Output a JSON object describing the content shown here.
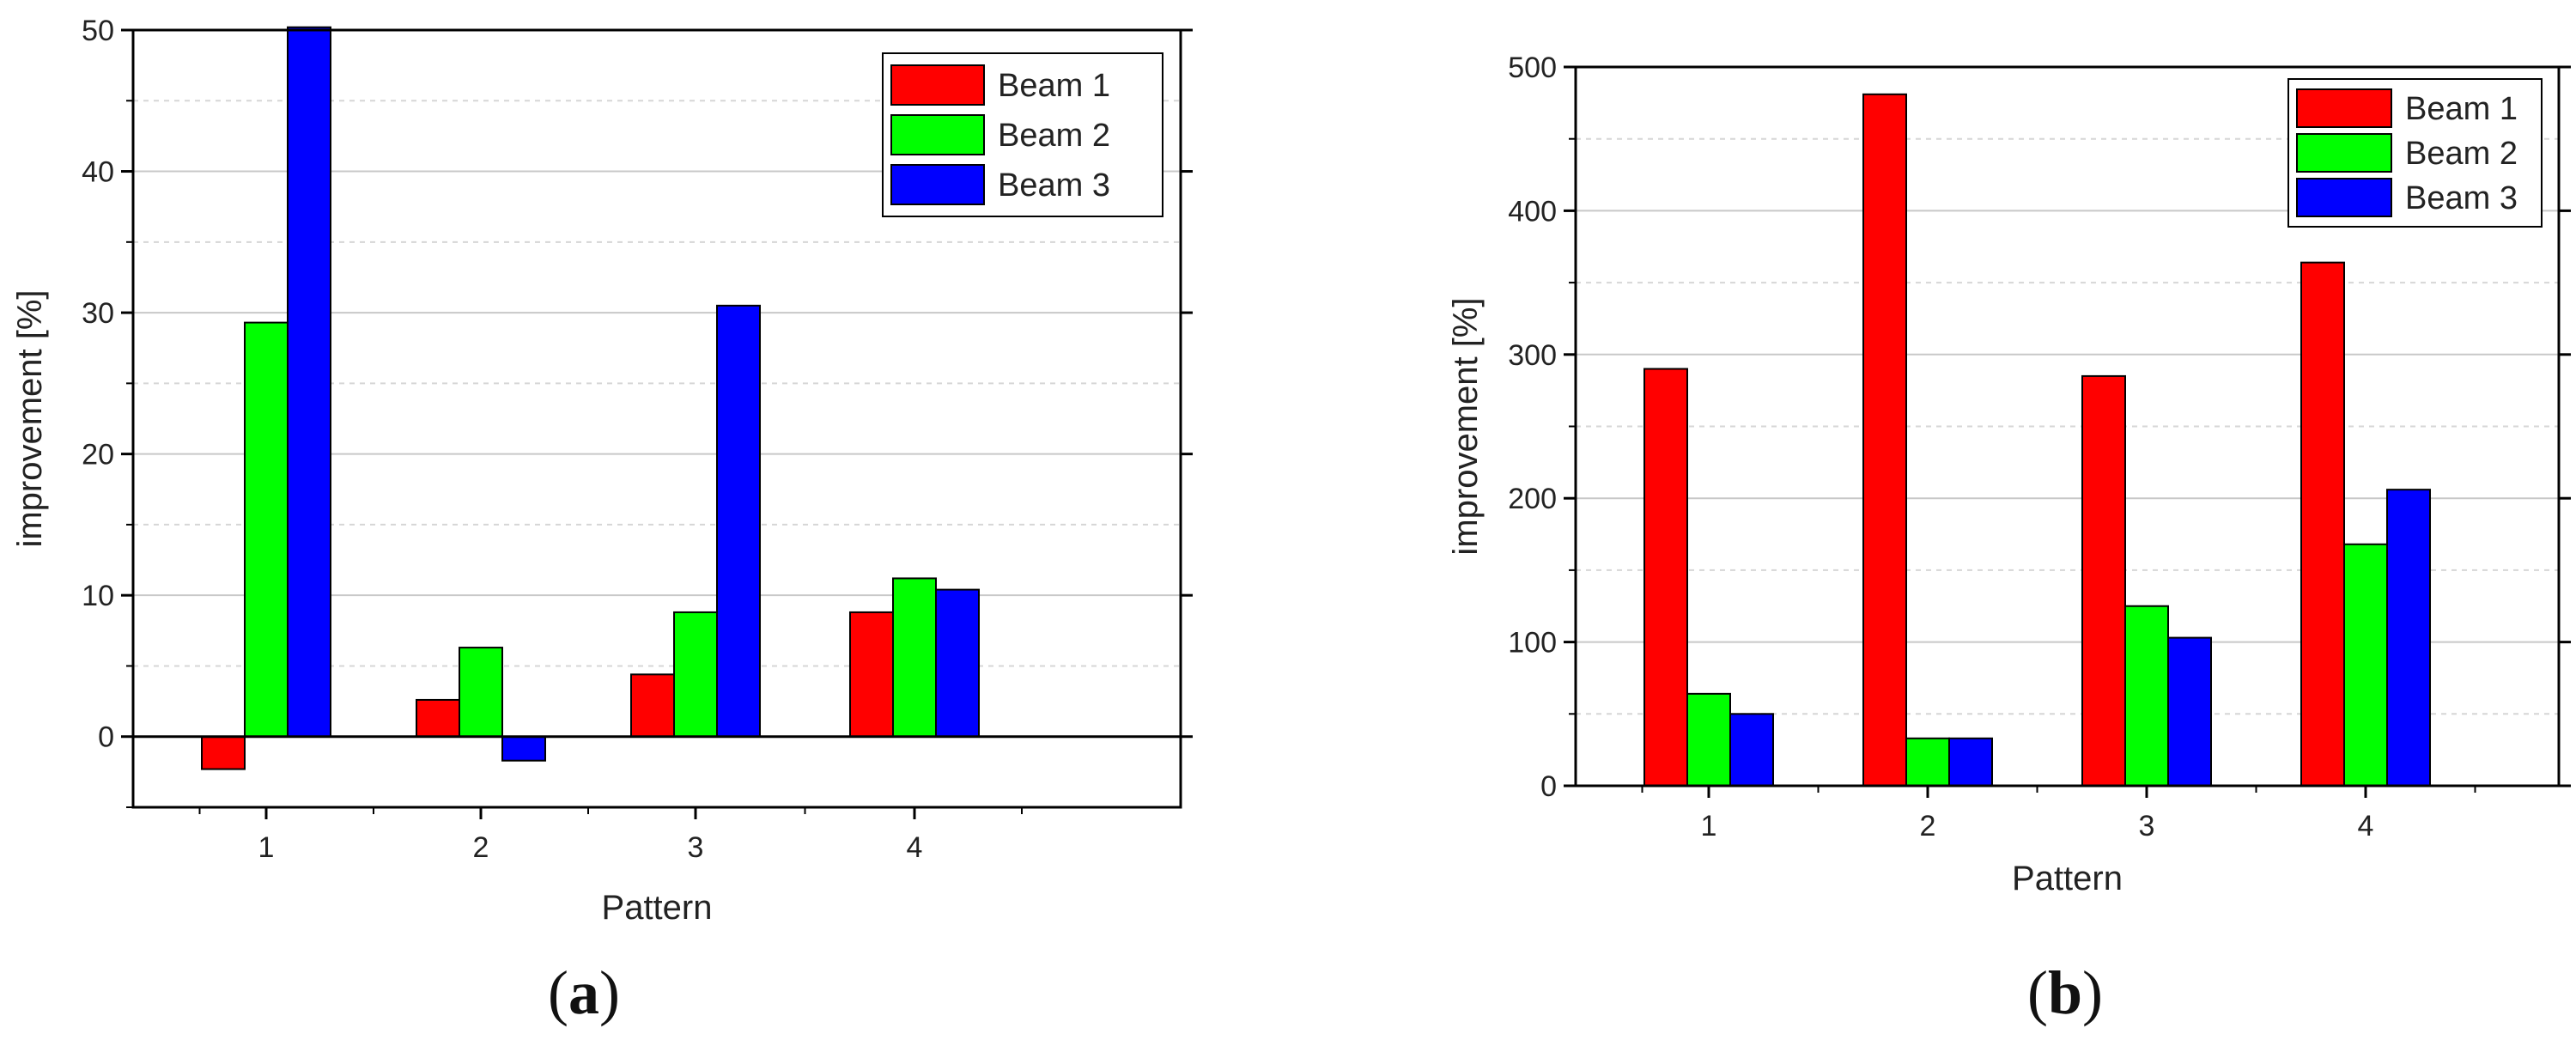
{
  "chart_data": [
    {
      "type": "bar",
      "panel_label": "(a)",
      "panel_label_letter": "a",
      "xlabel": "Pattern",
      "ylabel": "improvement [%]",
      "categories": [
        "1",
        "2",
        "3",
        "4"
      ],
      "series": [
        {
          "name": "Beam 1",
          "color": "#ff0000",
          "values": [
            -2.3,
            2.6,
            4.4,
            8.8
          ]
        },
        {
          "name": "Beam 2",
          "color": "#00ff00",
          "values": [
            29.3,
            6.3,
            8.8,
            11.2
          ]
        },
        {
          "name": "Beam 3",
          "color": "#0000ff",
          "values": [
            50.2,
            -1.7,
            30.5,
            10.4
          ]
        }
      ],
      "ylim": [
        -5,
        50
      ],
      "yticks": [
        0,
        10,
        20,
        30,
        40,
        50
      ],
      "grid": true,
      "legend_position": "top-right"
    },
    {
      "type": "bar",
      "panel_label": "(b)",
      "panel_label_letter": "b",
      "xlabel": "Pattern",
      "ylabel": "improvement [%]",
      "categories": [
        "1",
        "2",
        "3",
        "4"
      ],
      "series": [
        {
          "name": "Beam 1",
          "color": "#ff0000",
          "values": [
            290,
            481,
            285,
            364
          ]
        },
        {
          "name": "Beam 2",
          "color": "#00ff00",
          "values": [
            64,
            33,
            125,
            168
          ]
        },
        {
          "name": "Beam 3",
          "color": "#0000ff",
          "values": [
            50,
            33,
            103,
            206
          ]
        }
      ],
      "ylim": [
        0,
        500
      ],
      "yticks": [
        0,
        100,
        200,
        300,
        400,
        500
      ],
      "grid": true,
      "legend_position": "top-right"
    }
  ]
}
